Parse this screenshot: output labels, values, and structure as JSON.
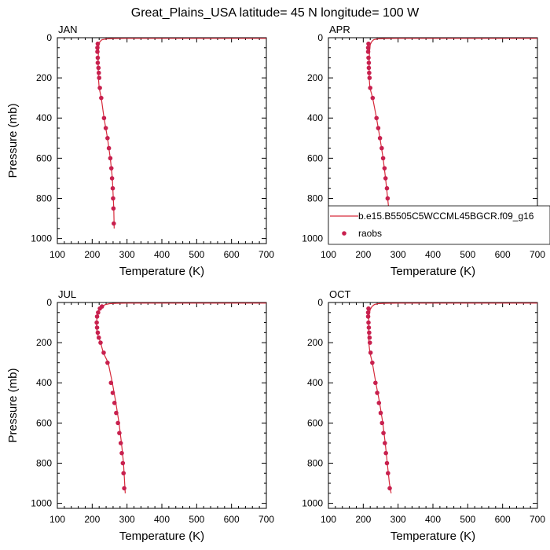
{
  "figure": {
    "title": "Great_Plains_USA  latitude= 45 N longitude= 100 W"
  },
  "legend": {
    "model_label": "b.e15.B5505C5WCCML45BGCR.f09_g16",
    "obs_label": "raobs",
    "line_color": "#d62a3a",
    "marker_color": "#c8204e"
  },
  "chart_data": [
    {
      "type": "line",
      "panel": "JAN",
      "xlabel": "Temperature (K)",
      "ylabel": "Pressure (mb)",
      "xlim": [
        100,
        700
      ],
      "ylim": [
        1025,
        0
      ],
      "y_reversed": true,
      "xticks": [
        100,
        200,
        300,
        400,
        500,
        600,
        700
      ],
      "yticks": [
        0,
        200,
        400,
        600,
        800,
        1000
      ],
      "series": [
        {
          "name": "b.e15.B5505C5WCCML45BGCR.f09_g16",
          "kind": "line",
          "x": [
            700,
            600,
            500,
            400,
            300,
            260,
            240,
            228,
            222,
            219,
            218,
            217,
            218,
            220,
            226,
            234,
            244,
            252,
            258,
            262,
            263
          ],
          "y": [
            3,
            3,
            3,
            3,
            3,
            4,
            6,
            10,
            20,
            35,
            70,
            120,
            200,
            250,
            300,
            400,
            500,
            600,
            700,
            850,
            950
          ]
        },
        {
          "name": "raobs",
          "kind": "scatter",
          "x": [
            216,
            215,
            215,
            216,
            216,
            218,
            219,
            220,
            222,
            226,
            234,
            239,
            244,
            248,
            252,
            255,
            257,
            259,
            260,
            261,
            262
          ],
          "y": [
            30,
            50,
            70,
            100,
            125,
            150,
            175,
            200,
            250,
            300,
            400,
            450,
            500,
            550,
            600,
            650,
            700,
            750,
            800,
            850,
            925
          ]
        }
      ]
    },
    {
      "type": "line",
      "panel": "APR",
      "xlabel": "Temperature (K)",
      "ylabel": "",
      "xlim": [
        100,
        700
      ],
      "ylim": [
        1025,
        0
      ],
      "y_reversed": true,
      "xticks": [
        100,
        200,
        300,
        400,
        500,
        600,
        700
      ],
      "yticks": [
        0,
        200,
        400,
        600,
        800,
        1000
      ],
      "series": [
        {
          "name": "b.e15.B5505C5WCCML45BGCR.f09_g16",
          "kind": "line",
          "x": [
            700,
            600,
            500,
            400,
            300,
            260,
            240,
            230,
            224,
            220,
            218,
            217,
            217,
            219,
            227,
            238,
            248,
            257,
            264,
            270,
            276,
            280
          ],
          "y": [
            3,
            3,
            3,
            3,
            3,
            4,
            6,
            10,
            20,
            35,
            70,
            120,
            200,
            250,
            300,
            400,
            500,
            600,
            700,
            800,
            900,
            950
          ]
        },
        {
          "name": "raobs",
          "kind": "scatter",
          "x": [
            215,
            214,
            214,
            215,
            216,
            216,
            217,
            218,
            220,
            227,
            238,
            243,
            248,
            253,
            257,
            261,
            264,
            268,
            270,
            273,
            277
          ],
          "y": [
            30,
            50,
            70,
            100,
            125,
            150,
            175,
            200,
            250,
            300,
            400,
            450,
            500,
            550,
            600,
            650,
            700,
            750,
            800,
            850,
            925
          ]
        }
      ]
    },
    {
      "type": "line",
      "panel": "JUL",
      "xlabel": "Temperature (K)",
      "ylabel": "Pressure (mb)",
      "xlim": [
        100,
        700
      ],
      "ylim": [
        1025,
        0
      ],
      "y_reversed": true,
      "xticks": [
        100,
        200,
        300,
        400,
        500,
        600,
        700
      ],
      "yticks": [
        0,
        200,
        400,
        600,
        800,
        1000
      ],
      "series": [
        {
          "name": "b.e15.B5505C5WCCML45BGCR.f09_g16",
          "kind": "line",
          "x": [
            700,
            600,
            500,
            400,
            300,
            270,
            250,
            238,
            228,
            220,
            214,
            212,
            214,
            224,
            232,
            246,
            258,
            268,
            277,
            284,
            290,
            295
          ],
          "y": [
            3,
            3,
            3,
            3,
            3,
            4,
            6,
            10,
            20,
            35,
            70,
            110,
            150,
            200,
            250,
            300,
            400,
            500,
            600,
            700,
            800,
            950
          ]
        },
        {
          "name": "raobs",
          "kind": "scatter",
          "x": [
            228,
            222,
            217,
            214,
            213,
            214,
            216,
            219,
            224,
            233,
            244,
            254,
            259,
            264,
            269,
            274,
            278,
            282,
            285,
            288,
            290,
            292
          ],
          "y": [
            20,
            30,
            50,
            70,
            100,
            125,
            150,
            175,
            200,
            250,
            300,
            400,
            450,
            500,
            550,
            600,
            650,
            700,
            750,
            800,
            850,
            925
          ]
        }
      ]
    },
    {
      "type": "line",
      "panel": "OCT",
      "xlabel": "Temperature (K)",
      "ylabel": "",
      "xlim": [
        100,
        700
      ],
      "ylim": [
        1025,
        0
      ],
      "y_reversed": true,
      "xticks": [
        100,
        200,
        300,
        400,
        500,
        600,
        700
      ],
      "yticks": [
        0,
        200,
        400,
        600,
        800,
        1000
      ],
      "series": [
        {
          "name": "b.e15.B5505C5WCCML45BGCR.f09_g16",
          "kind": "line",
          "x": [
            700,
            600,
            500,
            400,
            300,
            262,
            242,
            232,
            225,
            220,
            216,
            215,
            216,
            219,
            226,
            236,
            247,
            256,
            263,
            269,
            275,
            280
          ],
          "y": [
            3,
            3,
            3,
            3,
            3,
            4,
            6,
            10,
            20,
            35,
            70,
            120,
            200,
            250,
            300,
            400,
            500,
            600,
            700,
            800,
            900,
            950
          ]
        },
        {
          "name": "raobs",
          "kind": "scatter",
          "x": [
            215,
            214,
            214,
            215,
            216,
            217,
            218,
            219,
            221,
            226,
            235,
            240,
            245,
            250,
            254,
            258,
            262,
            265,
            268,
            271,
            276
          ],
          "y": [
            30,
            50,
            70,
            100,
            125,
            150,
            175,
            200,
            250,
            300,
            400,
            450,
            500,
            550,
            600,
            650,
            700,
            750,
            800,
            850,
            925
          ]
        }
      ]
    }
  ]
}
